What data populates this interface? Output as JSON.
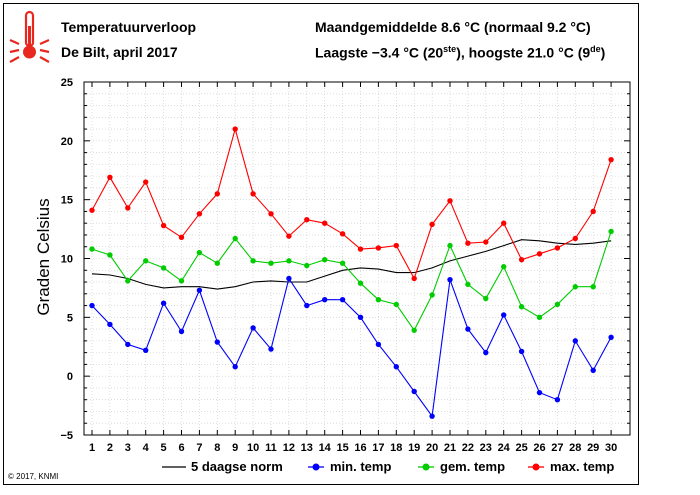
{
  "header": {
    "title": "Temperatuurverloop",
    "subtitle": "De Bilt, april 2017",
    "monthly_avg": "Maandgemiddelde 8.6 °C (normaal 9.2 °C)",
    "extremes_prefix": "Laagste −3.4 °C (20",
    "extremes_sup1": "ste",
    "extremes_mid": "), hoogste 21.0 °C (9",
    "extremes_sup2": "de",
    "extremes_suffix": ")"
  },
  "copyright": "© 2017, KNMI",
  "colors": {
    "norm": "#000000",
    "min": "#0000ff",
    "gem": "#00cc00",
    "max": "#ff0000",
    "thermometer": "#e8281e"
  },
  "icon": "thermometer-icon",
  "chart_data": {
    "type": "line",
    "ylabel": "Graden Celsius",
    "ylim": [
      -5,
      25
    ],
    "yticks": [
      -5,
      0,
      5,
      10,
      15,
      20,
      25
    ],
    "x": [
      1,
      2,
      3,
      4,
      5,
      6,
      7,
      8,
      9,
      10,
      11,
      12,
      13,
      14,
      15,
      16,
      17,
      18,
      19,
      20,
      21,
      22,
      23,
      24,
      25,
      26,
      27,
      28,
      29,
      30
    ],
    "grid": true,
    "legend": "bottom",
    "series": [
      {
        "name": "5 daagse norm",
        "key": "norm",
        "markers": false,
        "values": [
          8.7,
          8.6,
          8.3,
          7.8,
          7.5,
          7.6,
          7.6,
          7.4,
          7.6,
          8.0,
          8.1,
          8.0,
          8.0,
          8.5,
          9.0,
          9.2,
          9.1,
          8.8,
          8.8,
          9.2,
          9.8,
          10.2,
          10.6,
          11.1,
          11.6,
          11.5,
          11.3,
          11.2,
          11.3,
          11.5
        ]
      },
      {
        "name": "min. temp",
        "key": "min",
        "markers": true,
        "values": [
          6.0,
          4.4,
          2.7,
          2.2,
          6.2,
          3.8,
          7.3,
          2.9,
          0.8,
          4.1,
          2.3,
          8.3,
          6.0,
          6.5,
          6.5,
          5.0,
          2.7,
          0.8,
          -1.3,
          -3.4,
          8.2,
          4.0,
          2.0,
          5.2,
          2.1,
          -1.4,
          -2.0,
          3.0,
          0.5,
          3.3
        ]
      },
      {
        "name": "gem. temp",
        "key": "gem",
        "markers": true,
        "values": [
          10.8,
          10.3,
          8.1,
          9.8,
          9.2,
          8.1,
          10.5,
          9.6,
          11.7,
          9.8,
          9.6,
          9.8,
          9.4,
          9.9,
          9.6,
          7.9,
          6.5,
          6.1,
          3.9,
          6.9,
          11.1,
          7.8,
          6.6,
          9.3,
          5.9,
          5.0,
          6.1,
          7.6,
          7.6,
          12.3
        ]
      },
      {
        "name": "max. temp",
        "key": "max",
        "markers": true,
        "values": [
          14.1,
          16.9,
          14.3,
          16.5,
          12.8,
          11.8,
          13.8,
          15.5,
          21.0,
          15.5,
          13.8,
          11.9,
          13.3,
          13.0,
          12.1,
          10.8,
          10.9,
          11.1,
          8.3,
          12.9,
          14.9,
          11.3,
          11.4,
          13.0,
          9.9,
          10.4,
          10.9,
          11.7,
          14.0,
          18.4
        ]
      }
    ]
  }
}
